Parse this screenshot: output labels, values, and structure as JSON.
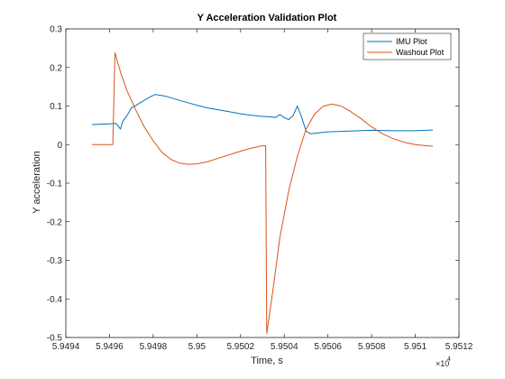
{
  "chart_data": {
    "type": "line",
    "title": "Y Acceleration Validation Plot",
    "xlabel": "Time, s",
    "ylabel": "Y acceleration",
    "x_multiplier_label": "×10",
    "x_multiplier_exp": "4",
    "xlim": [
      59494,
      59512
    ],
    "ylim": [
      -0.5,
      0.3
    ],
    "x_ticks": [
      59494,
      59496,
      59498,
      59500,
      59502,
      59504,
      59506,
      59508,
      59510,
      59512
    ],
    "x_tick_labels": [
      "5.9494",
      "5.9496",
      "5.9498",
      "5.95",
      "5.9502",
      "5.9504",
      "5.9506",
      "5.9508",
      "5.951",
      "5.9512"
    ],
    "y_ticks": [
      -0.5,
      -0.4,
      -0.3,
      -0.2,
      -0.1,
      0,
      0.1,
      0.2,
      0.3
    ],
    "y_tick_labels": [
      "-0.5",
      "-0.4",
      "-0.3",
      "-0.2",
      "-0.1",
      "0",
      "0.1",
      "0.2",
      "0.3"
    ],
    "grid": false,
    "legend_position": "top-right",
    "series": [
      {
        "name": "IMU Plot",
        "color": "#0072BD",
        "x": [
          59495.2,
          59495.6,
          59496.0,
          59496.3,
          59496.5,
          59496.6,
          59496.8,
          59497.0,
          59497.3,
          59497.6,
          59497.9,
          59498.1,
          59498.3,
          59498.6,
          59499.0,
          59499.5,
          59500.0,
          59500.5,
          59501.0,
          59501.5,
          59502.0,
          59502.5,
          59503.0,
          59503.4,
          59503.6,
          59503.8,
          59504.0,
          59504.2,
          59504.4,
          59504.6,
          59504.8,
          59505.0,
          59505.2,
          59505.5,
          59506.0,
          59507.0,
          59508.0,
          59509.0,
          59510.0,
          59510.8
        ],
        "y": [
          0.052,
          0.053,
          0.054,
          0.055,
          0.04,
          0.06,
          0.075,
          0.095,
          0.105,
          0.115,
          0.125,
          0.13,
          0.128,
          0.125,
          0.118,
          0.11,
          0.102,
          0.095,
          0.09,
          0.085,
          0.08,
          0.076,
          0.073,
          0.072,
          0.07,
          0.078,
          0.07,
          0.065,
          0.075,
          0.1,
          0.07,
          0.035,
          0.028,
          0.03,
          0.033,
          0.035,
          0.037,
          0.036,
          0.036,
          0.038
        ]
      },
      {
        "name": "Washout Plot",
        "color": "#D95319",
        "x": [
          59495.2,
          59496.0,
          59496.15,
          59496.25,
          59496.5,
          59496.8,
          59497.2,
          59497.6,
          59498.0,
          59498.4,
          59498.8,
          59499.2,
          59499.6,
          59500.0,
          59500.5,
          59501.0,
          59501.5,
          59502.0,
          59502.5,
          59503.0,
          59503.15,
          59503.2,
          59503.5,
          59503.8,
          59504.2,
          59504.6,
          59505.0,
          59505.4,
          59505.8,
          59506.2,
          59506.6,
          59507.0,
          59507.5,
          59508.0,
          59508.5,
          59509.0,
          59509.5,
          59510.0,
          59510.5,
          59510.8
        ],
        "y": [
          0.0,
          0.0,
          0.0,
          0.238,
          0.188,
          0.14,
          0.09,
          0.045,
          0.01,
          -0.02,
          -0.038,
          -0.048,
          -0.051,
          -0.05,
          -0.044,
          -0.035,
          -0.026,
          -0.017,
          -0.009,
          -0.003,
          -0.003,
          -0.49,
          -0.37,
          -0.24,
          -0.12,
          -0.03,
          0.04,
          0.08,
          0.1,
          0.105,
          0.1,
          0.087,
          0.068,
          0.046,
          0.028,
          0.015,
          0.006,
          0.0,
          -0.003,
          -0.004
        ]
      }
    ]
  }
}
